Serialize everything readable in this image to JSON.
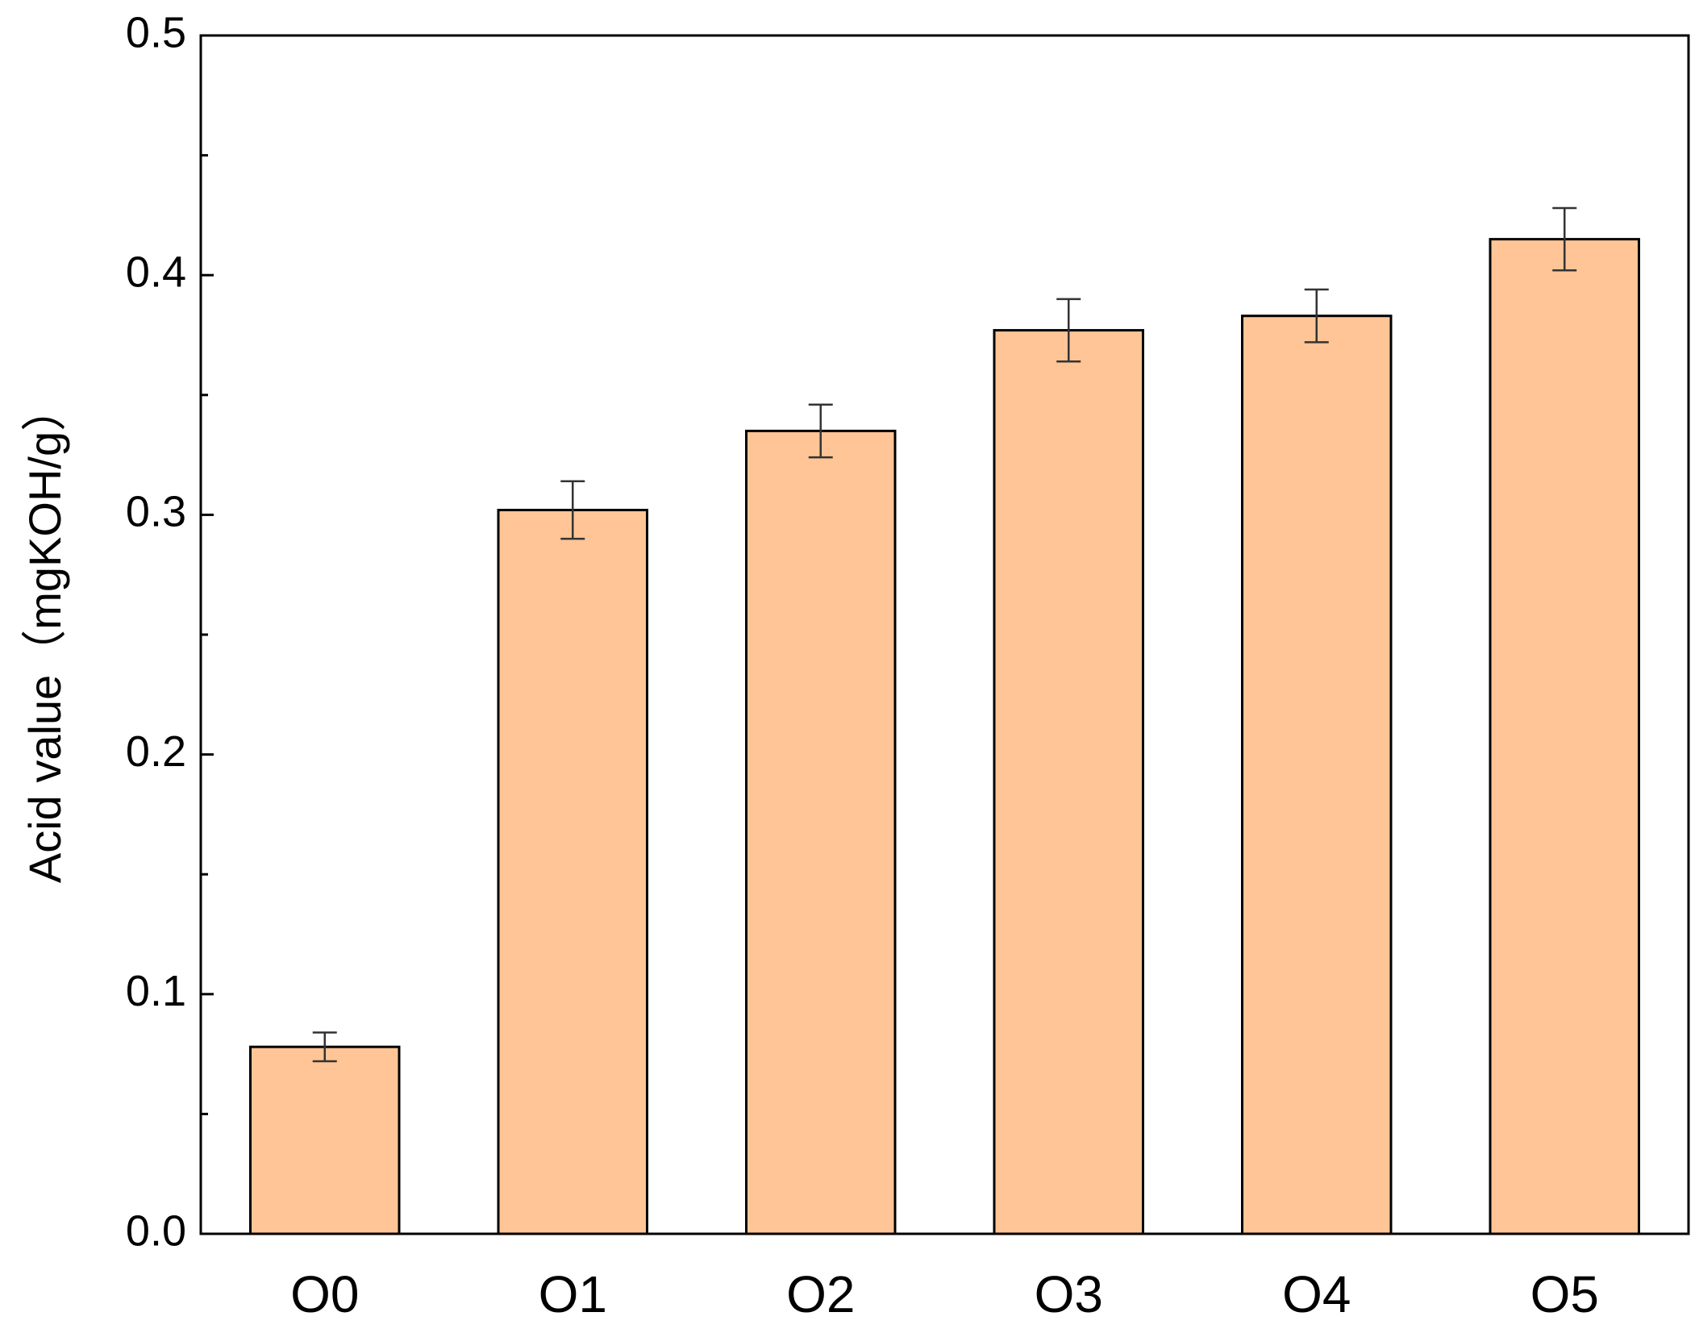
{
  "chart_data": {
    "type": "bar",
    "y_label": "Acid value（mgKOH/g）",
    "categories": [
      "O0",
      "O1",
      "O2",
      "O3",
      "O4",
      "O5"
    ],
    "values": [
      0.078,
      0.302,
      0.335,
      0.377,
      0.383,
      0.415
    ],
    "errors": [
      0.006,
      0.012,
      0.011,
      0.013,
      0.011,
      0.013
    ],
    "color": "#ffc596",
    "ylim": [
      0,
      0.5
    ],
    "yticks": [
      {
        "value": 0,
        "label": "0.0"
      },
      0.1,
      0.2,
      0.3,
      0.4,
      0.5
    ],
    "y_minor_ticks": [
      0.05,
      0.15,
      0.25,
      0.35,
      0.45
    ],
    "grid": false
  }
}
